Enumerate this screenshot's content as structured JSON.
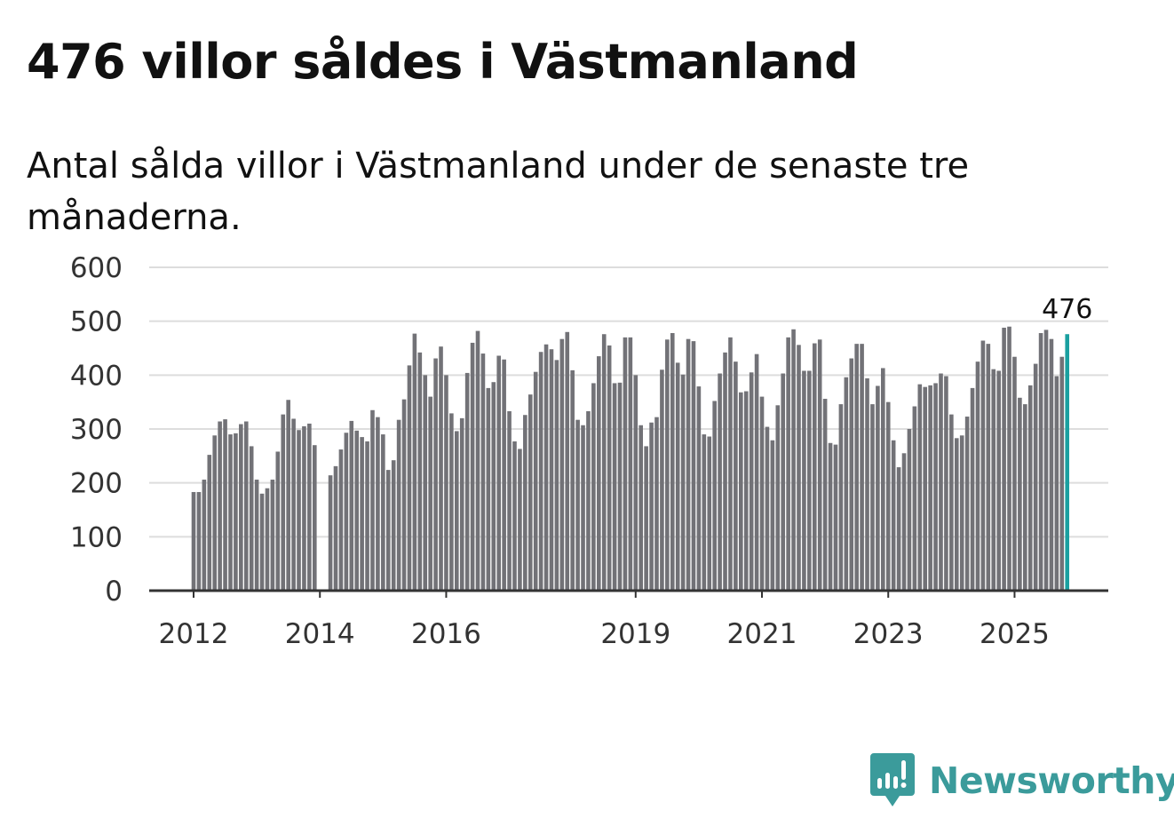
{
  "title": "476 villor såldes i Västmanland",
  "subtitle": "Antal sålda villor i Västmanland under de senaste tre månaderna.",
  "brand": {
    "name": "Newsworthy",
    "icon": "newsworthy-logo-icon",
    "color": "#3b9b9b"
  },
  "colors": {
    "bar": "#727277",
    "highlight": "#1aa0a0",
    "grid": "#dddddd",
    "axis": "#333333"
  },
  "chart_data": {
    "type": "bar",
    "title": "476 villor såldes i Västmanland",
    "subtitle": "Antal sålda villor i Västmanland under de senaste tre månaderna.",
    "xlabel": "",
    "ylabel": "",
    "ylim": [
      0,
      600
    ],
    "yticks": [
      0,
      100,
      200,
      300,
      400,
      500,
      600
    ],
    "grid": true,
    "start": "2012-01",
    "x_tick_labels": [
      "2012",
      "2014",
      "2016",
      "2019",
      "2021",
      "2023",
      "2025"
    ],
    "highlight_label": "476",
    "values": [
      183,
      183,
      206,
      252,
      288,
      314,
      318,
      290,
      292,
      309,
      314,
      268,
      206,
      180,
      190,
      206,
      258,
      327,
      354,
      319,
      298,
      305,
      310,
      270,
      null,
      null,
      214,
      231,
      262,
      293,
      315,
      297,
      285,
      277,
      335,
      322,
      290,
      224,
      242,
      317,
      355,
      418,
      477,
      442,
      400,
      360,
      431,
      453,
      400,
      329,
      296,
      320,
      404,
      460,
      482,
      440,
      376,
      387,
      436,
      429,
      333,
      277,
      263,
      326,
      364,
      406,
      443,
      457,
      448,
      428,
      467,
      480,
      409,
      317,
      307,
      333,
      385,
      435,
      476,
      455,
      385,
      386,
      470,
      470,
      400,
      307,
      268,
      312,
      322,
      410,
      466,
      478,
      423,
      401,
      467,
      463,
      379,
      290,
      286,
      352,
      403,
      442,
      470,
      425,
      368,
      370,
      405,
      439,
      360,
      304,
      279,
      344,
      403,
      470,
      485,
      456,
      408,
      408,
      459,
      466,
      356,
      274,
      271,
      346,
      396,
      431,
      458,
      458,
      394,
      346,
      380,
      413,
      350,
      279,
      229,
      255,
      300,
      342,
      383,
      378,
      381,
      385,
      403,
      398,
      327,
      283,
      288,
      323,
      376,
      425,
      464,
      458,
      411,
      408,
      488,
      490,
      434,
      358,
      346,
      381,
      421,
      478,
      484,
      467,
      398,
      434,
      476
    ]
  }
}
